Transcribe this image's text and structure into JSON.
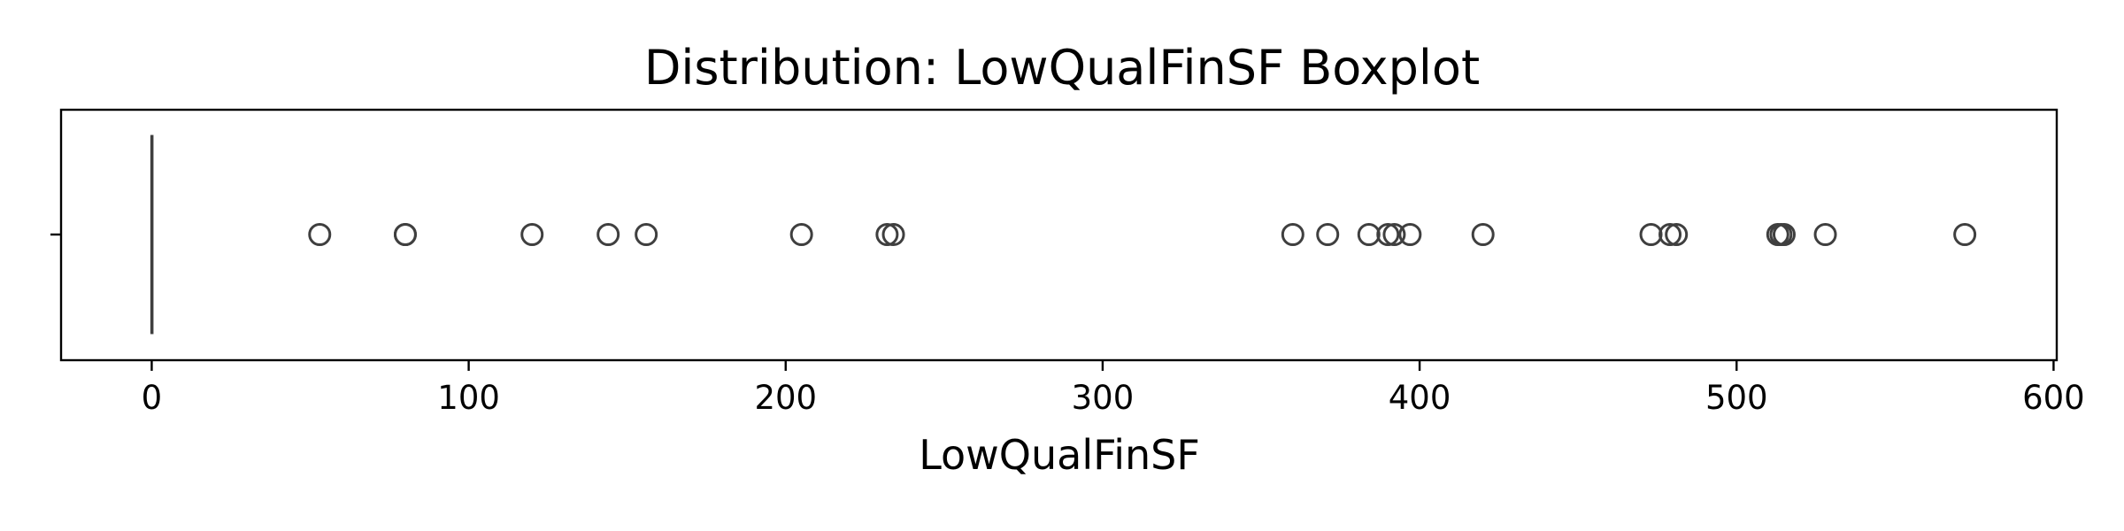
{
  "chart_data": {
    "type": "boxplot",
    "orientation": "horizontal",
    "title": "Distribution: LowQualFinSF Boxplot",
    "xlabel": "LowQualFinSF",
    "ylabel": "",
    "xlim": [
      -28.6,
      601
    ],
    "xticks": [
      0,
      100,
      200,
      300,
      400,
      500,
      600
    ],
    "xtick_labels": [
      "0",
      "100",
      "200",
      "300",
      "400",
      "500",
      "600"
    ],
    "grid": false,
    "box": {
      "whisker_low": 0,
      "q1": 0,
      "median": 0,
      "q3": 0,
      "whisker_high": 0
    },
    "outliers": [
      53,
      80,
      80,
      120,
      144,
      156,
      205,
      232,
      234,
      360,
      371,
      384,
      390,
      392,
      397,
      420,
      473,
      479,
      481,
      513,
      514,
      515,
      528,
      572
    ],
    "colors": {
      "line": "#3f3f3f",
      "axes": "#000000"
    }
  }
}
